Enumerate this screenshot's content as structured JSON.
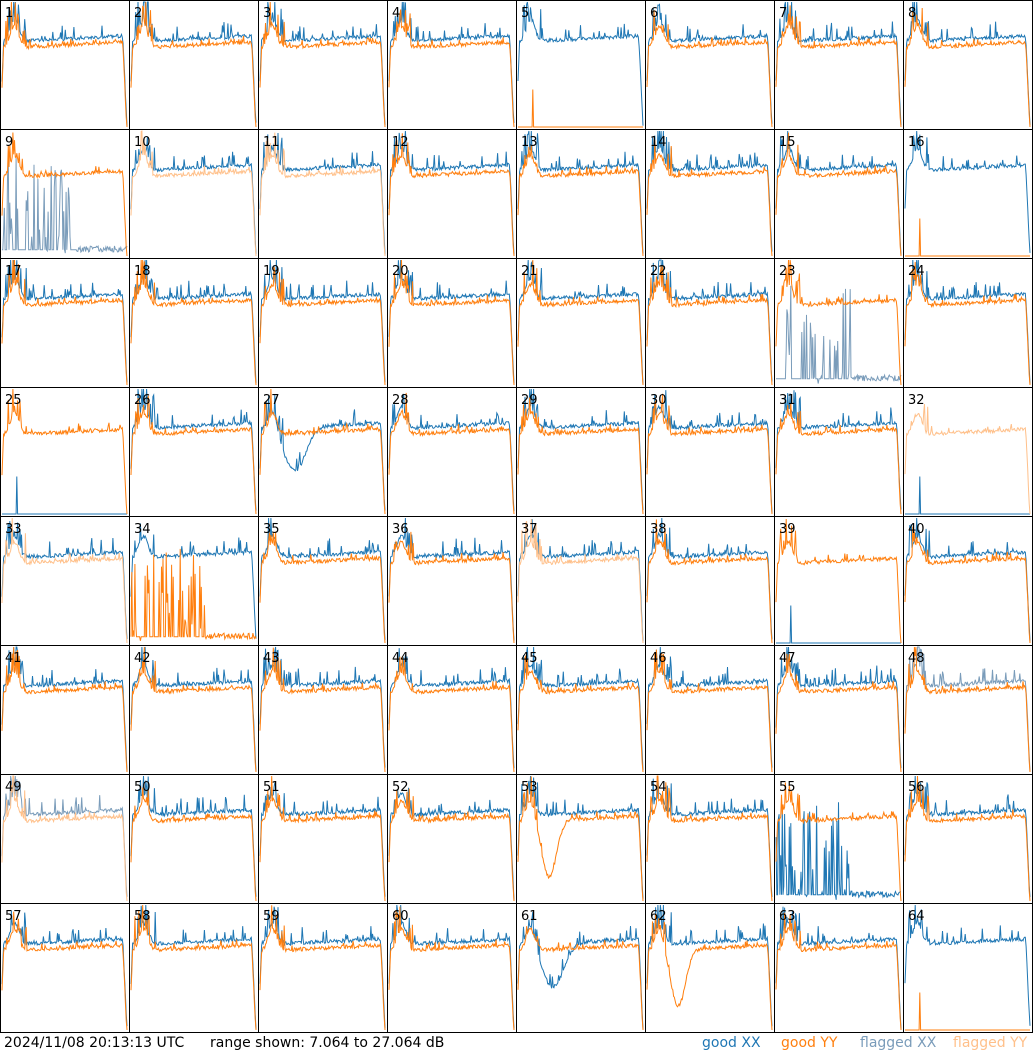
{
  "chart_data": {
    "type": "line",
    "layout": "grid 8x8 small multiples",
    "panels": [
      1,
      2,
      3,
      4,
      5,
      6,
      7,
      8,
      9,
      10,
      11,
      12,
      13,
      14,
      15,
      16,
      17,
      18,
      19,
      20,
      21,
      22,
      23,
      24,
      25,
      26,
      27,
      28,
      29,
      30,
      31,
      32,
      33,
      34,
      35,
      36,
      37,
      38,
      39,
      40,
      41,
      42,
      43,
      44,
      45,
      46,
      47,
      48,
      49,
      50,
      51,
      52,
      53,
      54,
      55,
      56,
      57,
      58,
      59,
      60,
      61,
      62,
      63,
      64
    ],
    "ylim_db": [
      7.064,
      27.064
    ],
    "series": [
      {
        "name": "good XX",
        "color": "#1f77b4"
      },
      {
        "name": "good YY",
        "color": "#ff7f0e"
      },
      {
        "name": "flagged XX",
        "color": "#7a9cba"
      },
      {
        "name": "flagged YY",
        "color": "#ffc08a"
      }
    ],
    "panel_styles": {
      "5": {
        "yy_flat": true
      },
      "9": {
        "xx_flag_spiky": true
      },
      "10": {
        "yy_flagged": true
      },
      "11": {
        "yy_flagged": true
      },
      "16": {
        "yy_flat": true
      },
      "23": {
        "xx_flag_spiky": true
      },
      "25": {
        "xx_flat": true
      },
      "27": {
        "xx_dip": true
      },
      "32": {
        "yy_flagged": true,
        "xx_flat": true
      },
      "33": {
        "yy_flagged": true
      },
      "34": {
        "yy_spiky": true
      },
      "37": {
        "yy_flagged": true
      },
      "39": {
        "xx_flat": true
      },
      "48": {
        "xx_flagged": true
      },
      "49": {
        "yy_flagged": true,
        "xx_flagged": true
      },
      "53": {
        "yy_dip": true
      },
      "55": {
        "xx_spiky": true
      },
      "61": {
        "xx_dip": true
      },
      "62": {
        "yy_dip": true
      },
      "64": {
        "yy_flat": true
      }
    }
  },
  "footer": {
    "timestamp": "2024/11/08 20:13:13 UTC",
    "range_text": "range shown: 7.064 to 27.064 dB"
  },
  "legend": {
    "good_xx": "good XX",
    "good_yy": "good YY",
    "flagged_xx": "flagged XX",
    "flagged_yy": "flagged YY"
  }
}
